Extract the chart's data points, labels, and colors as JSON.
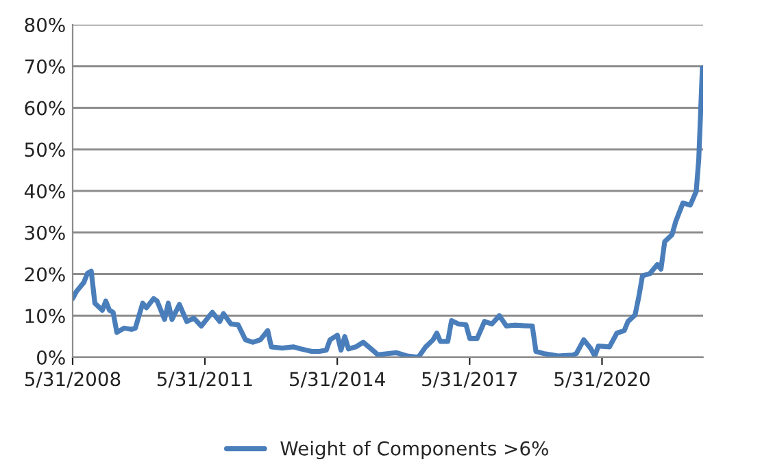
{
  "chart_data": {
    "type": "line",
    "xlim": [
      "2008-05-31",
      "2022-09-15"
    ],
    "xticks": [
      {
        "value": "2008-05-31",
        "label": "5/31/2008"
      },
      {
        "value": "2011-05-31",
        "label": "5/31/2011"
      },
      {
        "value": "2014-05-31",
        "label": "5/31/2014"
      },
      {
        "value": "2017-05-31",
        "label": "5/31/2017"
      },
      {
        "value": "2020-05-31",
        "label": "5/31/2020"
      }
    ],
    "ylim": [
      0,
      80
    ],
    "yticks": [
      {
        "value": 0,
        "label": "0%"
      },
      {
        "value": 10,
        "label": "10%"
      },
      {
        "value": 20,
        "label": "20%"
      },
      {
        "value": 30,
        "label": "30%"
      },
      {
        "value": 40,
        "label": "40%"
      },
      {
        "value": 50,
        "label": "50%"
      },
      {
        "value": 60,
        "label": "60%"
      },
      {
        "value": 70,
        "label": "70%"
      },
      {
        "value": 80,
        "label": "80%"
      }
    ],
    "grid": "y",
    "legend": "bottom",
    "marker": "none",
    "line_style": "solid",
    "series": [
      {
        "name": "Weight of Components >6%",
        "color": "#4a7ebb",
        "x": [
          "2008-05-31",
          "2008-07",
          "2008-09",
          "2008-10",
          "2008-11",
          "2008-12",
          "2009-02",
          "2009-03",
          "2009-04",
          "2009-05",
          "2009-06",
          "2009-08",
          "2009-10",
          "2009-11",
          "2010-01",
          "2010-02",
          "2010-04",
          "2010-05",
          "2010-07",
          "2010-08",
          "2010-09",
          "2010-11",
          "2011-01",
          "2011-03",
          "2011-05",
          "2011-07",
          "2011-08",
          "2011-10",
          "2011-11",
          "2012-01",
          "2012-03",
          "2012-05",
          "2012-07",
          "2012-09",
          "2012-11",
          "2012-12",
          "2013-03",
          "2013-06",
          "2013-08",
          "2013-11",
          "2014-01",
          "2014-03",
          "2014-04",
          "2014-06",
          "2014-07",
          "2014-08",
          "2014-09",
          "2014-11",
          "2015-01",
          "2015-04",
          "2015-05",
          "2015-08",
          "2015-10",
          "2016-01",
          "2016-04",
          "2016-06",
          "2016-08",
          "2016-09",
          "2016-10",
          "2016-12",
          "2017-01",
          "2017-03",
          "2017-05",
          "2017-06",
          "2017-08",
          "2017-10",
          "2017-12",
          "2018-02",
          "2018-04",
          "2018-06",
          "2018-11",
          "2018-12",
          "2019-02",
          "2019-06",
          "2019-10",
          "2019-11",
          "2020-01",
          "2020-03",
          "2020-04",
          "2020-05",
          "2020-08",
          "2020-10",
          "2020-12",
          "2021-01",
          "2021-03",
          "2021-04",
          "2021-05",
          "2021-07",
          "2021-09",
          "2021-10",
          "2021-11",
          "2022-01",
          "2022-02",
          "2022-04",
          "2022-06",
          "2022-07-20",
          "2022-08-10",
          "2022-08-25",
          "2022-09-09"
        ],
        "values": [
          14.1,
          15.8,
          18,
          20.2,
          20.7,
          13,
          11.3,
          13.5,
          11.3,
          10.8,
          6,
          7,
          6.7,
          7,
          13,
          11.9,
          14.1,
          13.5,
          9.1,
          13,
          9.1,
          12.7,
          8.6,
          9.4,
          7.5,
          9.7,
          10.8,
          8.6,
          10.5,
          8,
          7.8,
          4.2,
          3.6,
          4.2,
          6.4,
          2.5,
          2.2,
          2.5,
          2,
          1.4,
          1.4,
          1.7,
          4.2,
          5.3,
          1.7,
          5,
          2,
          2.5,
          3.6,
          1.4,
          0.6,
          0.9,
          1.1,
          0.3,
          0,
          2.5,
          4.2,
          5.8,
          3.8,
          3.8,
          8.8,
          8,
          7.8,
          4.5,
          4.5,
          8.6,
          8,
          10,
          7.5,
          7.7,
          7.5,
          1.4,
          0.9,
          0.3,
          0.5,
          0.9,
          4.2,
          2,
          0.3,
          2.7,
          2.5,
          5.8,
          6.4,
          8.6,
          10.2,
          14.6,
          19.6,
          20.1,
          22.3,
          21.2,
          27.8,
          29.5,
          32.7,
          37.1,
          36.6,
          39.9,
          47.6,
          58.6,
          69.6
        ]
      }
    ]
  }
}
